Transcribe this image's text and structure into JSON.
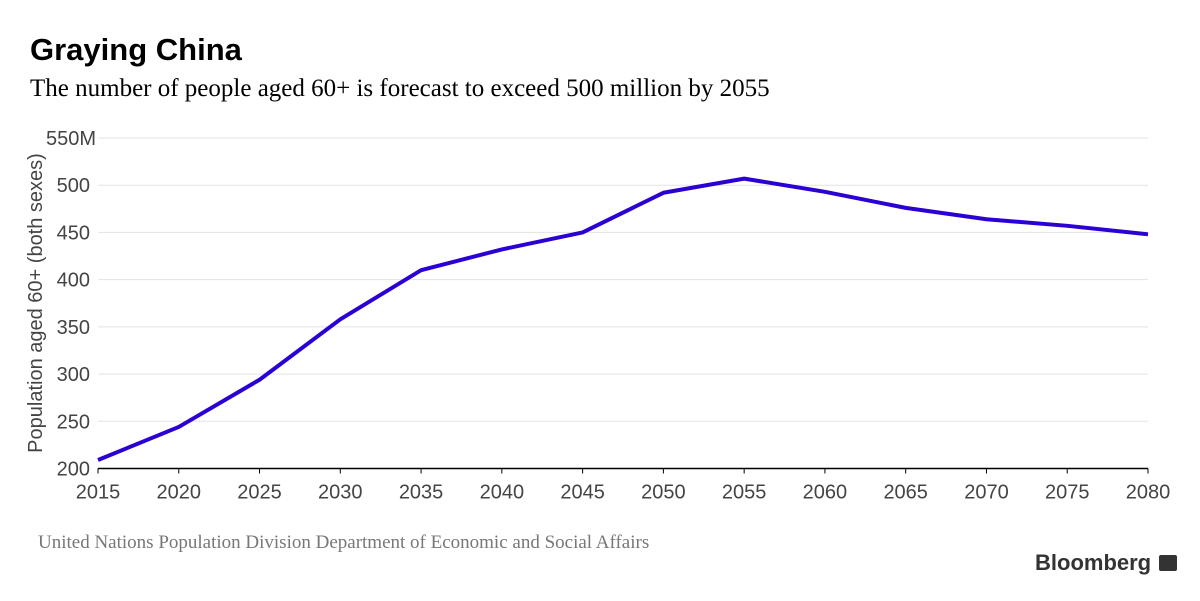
{
  "header": {
    "title": "Graying China",
    "subtitle": "The number of people aged 60+ is forecast to exceed 500 million by 2055"
  },
  "footer": {
    "source": "United Nations Population Division Department of Economic and Social Affairs",
    "brand": "Bloomberg"
  },
  "chart_data": {
    "type": "line",
    "title": "Graying China",
    "subtitle": "The number of people aged 60+ is forecast to exceed 500 million by 2055",
    "xlabel": "",
    "ylabel": "Population aged 60+ (both sexes)",
    "x": [
      2015,
      2020,
      2025,
      2030,
      2035,
      2040,
      2045,
      2050,
      2055,
      2060,
      2065,
      2070,
      2075,
      2080
    ],
    "series": [
      {
        "values": [
          209,
          244,
          294,
          358,
          410,
          432,
          450,
          492,
          507,
          493,
          476,
          464,
          457,
          448
        ],
        "color": "#2b00d4"
      }
    ],
    "xlim": [
      2015,
      2080
    ],
    "ylim": [
      200,
      550
    ],
    "yticks": [
      200,
      250,
      300,
      350,
      400,
      450,
      500,
      550
    ],
    "ytick_labels": [
      "200",
      "250",
      "300",
      "350",
      "400",
      "450",
      "500",
      "550M"
    ],
    "xtick_labels": [
      "2015",
      "2020",
      "2025",
      "2030",
      "2035",
      "2040",
      "2045",
      "2050",
      "2055",
      "2060",
      "2065",
      "2070",
      "2075",
      "2080"
    ],
    "grid": true,
    "legend": "none"
  }
}
